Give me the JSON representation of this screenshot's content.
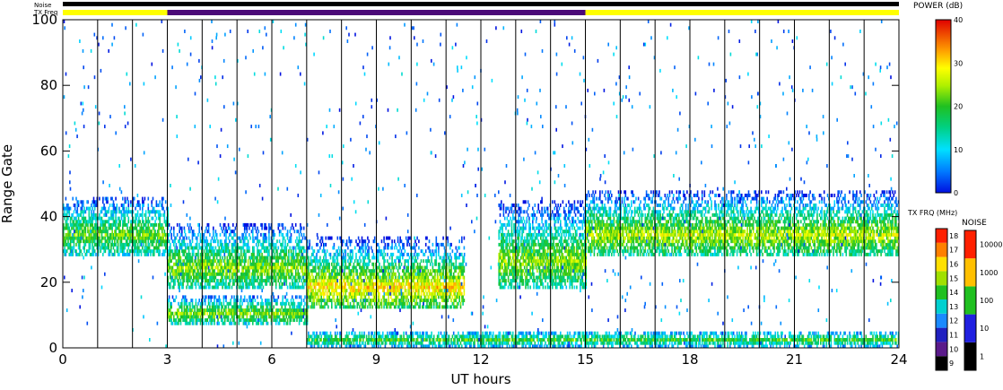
{
  "chart_data": {
    "type": "heatmap",
    "title": "",
    "xlabel": "UT hours",
    "ylabel": "Range Gate",
    "xlim": [
      0,
      24
    ],
    "ylim": [
      0,
      100
    ],
    "x_ticks": [
      "0",
      "3",
      "6",
      "9",
      "12",
      "15",
      "18",
      "21",
      "24"
    ],
    "y_ticks": [
      "0",
      "20",
      "40",
      "60",
      "80",
      "100"
    ],
    "grid": "vertical lines every hour",
    "header": {
      "noise_label": "Noise",
      "txfreq_label": "TX Freq",
      "txfreq_segments": [
        {
          "start": 0,
          "end": 3,
          "color": "#ffff00"
        },
        {
          "start": 3,
          "end": 15,
          "color": "#4b0a78"
        },
        {
          "start": 15,
          "end": 24,
          "color": "#ffff00"
        }
      ]
    },
    "power_colorbar": {
      "label": "POWER (dB)",
      "range": [
        0,
        40
      ],
      "ticks": [
        "0",
        "10",
        "20",
        "30",
        "40"
      ]
    },
    "txfreq_colorbar": {
      "label": "TX FRQ (MHz)",
      "ticks": [
        "9",
        "10",
        "11",
        "12",
        "13",
        "14",
        "15",
        "16",
        "17",
        "18"
      ]
    },
    "noise_colorbar": {
      "label": "NOISE",
      "ticks": [
        "1",
        "10",
        "100",
        "1000",
        "10000"
      ]
    },
    "power_regions": [
      {
        "t0": 0,
        "t1": 3,
        "g0": 28,
        "g1": 46,
        "peak_gate": 34,
        "peak_power": 22
      },
      {
        "t0": 3,
        "t1": 7,
        "g0": 7,
        "g1": 16,
        "peak_gate": 10,
        "peak_power": 24
      },
      {
        "t0": 3,
        "t1": 7,
        "g0": 18,
        "g1": 38,
        "peak_gate": 24,
        "peak_power": 24
      },
      {
        "t0": 7,
        "t1": 11.5,
        "g0": 12,
        "g1": 34,
        "peak_gate": 18,
        "peak_power": 30
      },
      {
        "t0": 12.5,
        "t1": 15,
        "g0": 18,
        "g1": 45,
        "peak_gate": 26,
        "peak_power": 24
      },
      {
        "t0": 15,
        "t1": 24,
        "g0": 28,
        "g1": 48,
        "peak_gate": 34,
        "peak_power": 26
      },
      {
        "t0": 7,
        "t1": 24,
        "g0": 0,
        "g1": 5,
        "peak_gate": 2,
        "peak_power": 20
      }
    ]
  }
}
